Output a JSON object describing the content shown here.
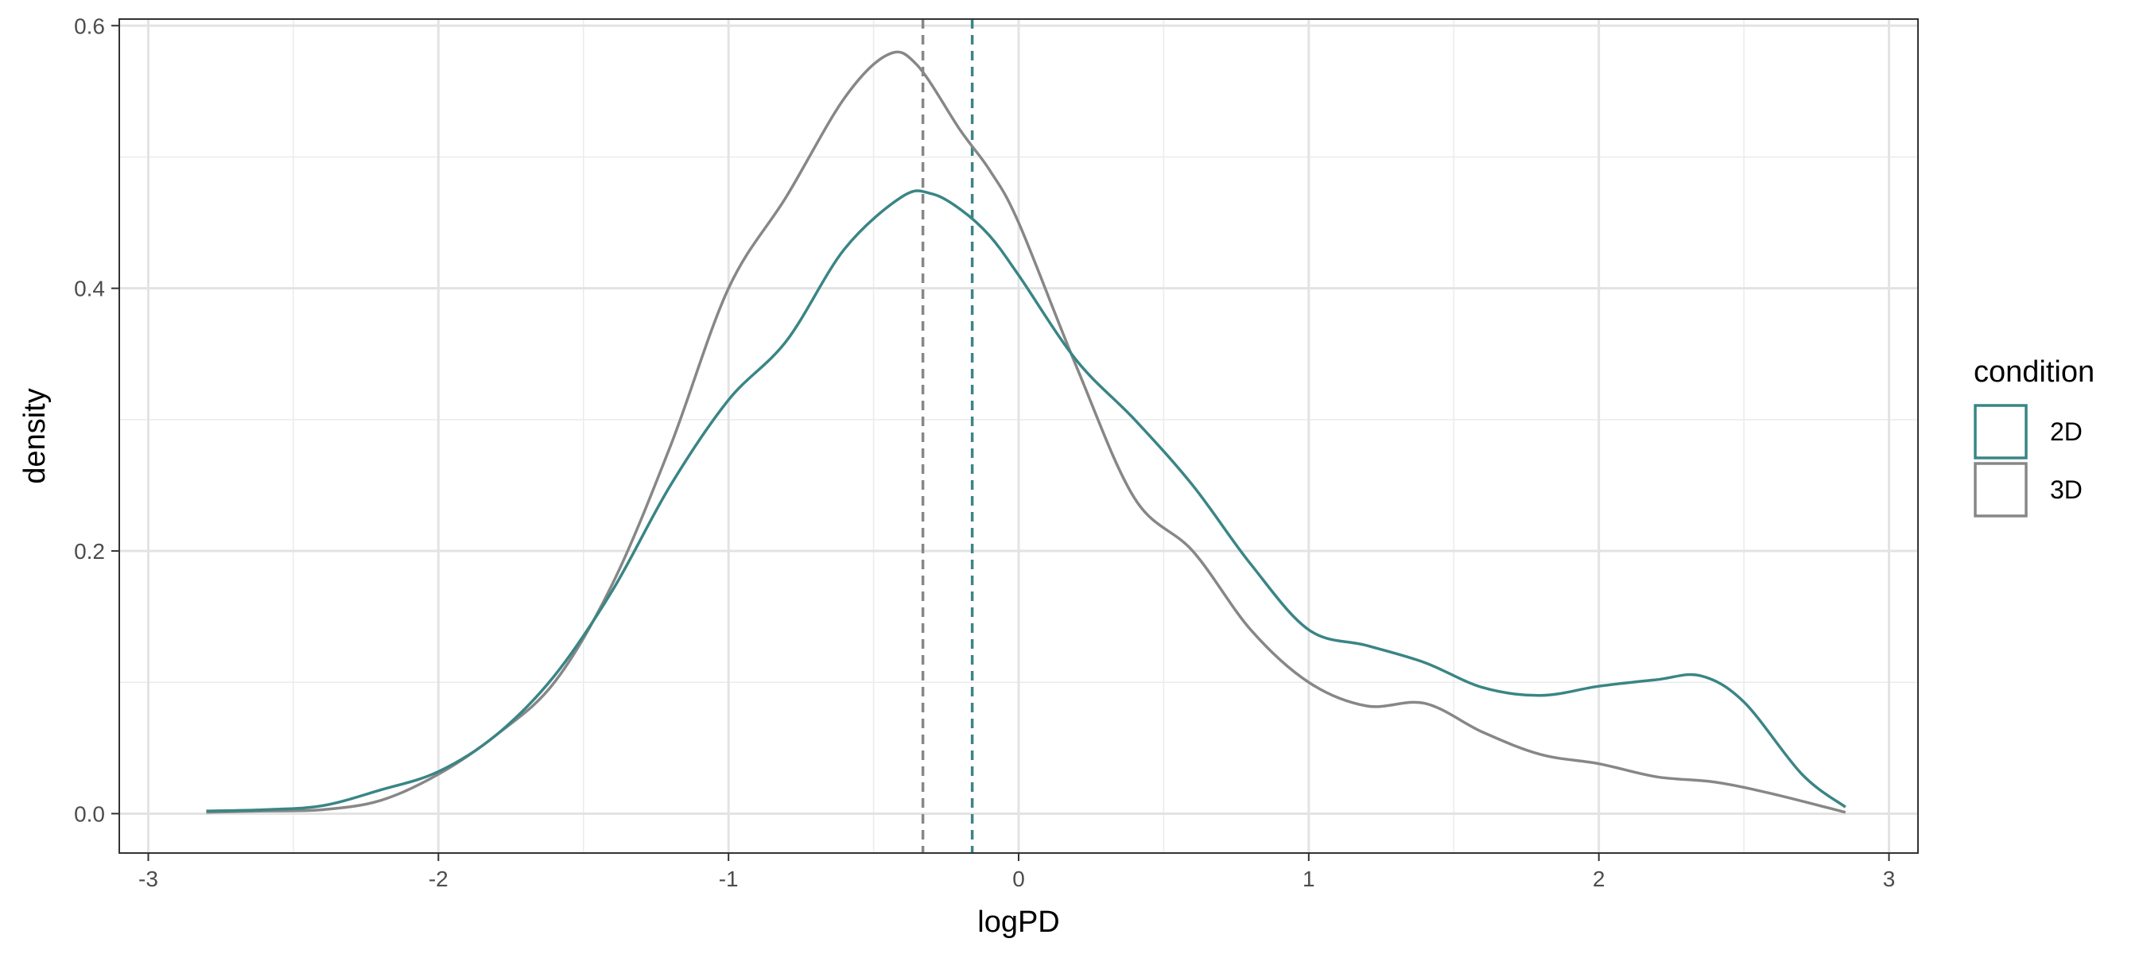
{
  "chart_data": {
    "type": "line",
    "subtype": "density",
    "xlabel": "logPD",
    "ylabel": "density",
    "xlim": [
      -3.1,
      3.1
    ],
    "ylim": [
      -0.03,
      0.605
    ],
    "xticks": [
      -3,
      -2,
      -1,
      0,
      1,
      2,
      3
    ],
    "xtick_labels": [
      "-3",
      "-2",
      "-1",
      "0",
      "1",
      "2",
      "3"
    ],
    "yticks": [
      0.0,
      0.2,
      0.4,
      0.6
    ],
    "ytick_labels": [
      "0.0",
      "0.2",
      "0.4",
      "0.6"
    ],
    "grid": true,
    "legend": {
      "title": "condition",
      "position": "right"
    },
    "series": [
      {
        "name": "2D",
        "color": "#3a8585",
        "mean_line": -0.16,
        "x": [
          -2.8,
          -2.6,
          -2.4,
          -2.2,
          -2.0,
          -1.8,
          -1.6,
          -1.4,
          -1.2,
          -1.0,
          -0.8,
          -0.6,
          -0.4,
          -0.3,
          -0.2,
          -0.1,
          0.0,
          0.2,
          0.4,
          0.6,
          0.8,
          1.0,
          1.2,
          1.4,
          1.6,
          1.8,
          2.0,
          2.2,
          2.35,
          2.5,
          2.7,
          2.85
        ],
        "y": [
          0.002,
          0.003,
          0.006,
          0.018,
          0.032,
          0.06,
          0.105,
          0.17,
          0.25,
          0.315,
          0.36,
          0.43,
          0.47,
          0.472,
          0.46,
          0.44,
          0.41,
          0.345,
          0.3,
          0.25,
          0.19,
          0.14,
          0.128,
          0.115,
          0.096,
          0.09,
          0.097,
          0.102,
          0.105,
          0.085,
          0.03,
          0.005
        ]
      },
      {
        "name": "3D",
        "color": "#878787",
        "mean_line": -0.33,
        "x": [
          -2.8,
          -2.6,
          -2.4,
          -2.2,
          -2.0,
          -1.8,
          -1.6,
          -1.4,
          -1.2,
          -1.0,
          -0.8,
          -0.6,
          -0.45,
          -0.35,
          -0.2,
          -0.1,
          0.0,
          0.2,
          0.4,
          0.6,
          0.8,
          1.0,
          1.2,
          1.4,
          1.6,
          1.8,
          2.0,
          2.2,
          2.4,
          2.6,
          2.85
        ],
        "y": [
          0.001,
          0.002,
          0.003,
          0.01,
          0.03,
          0.06,
          0.1,
          0.175,
          0.28,
          0.4,
          0.47,
          0.545,
          0.578,
          0.57,
          0.52,
          0.49,
          0.45,
          0.34,
          0.24,
          0.2,
          0.14,
          0.1,
          0.082,
          0.084,
          0.062,
          0.045,
          0.038,
          0.028,
          0.024,
          0.015,
          0.001
        ]
      }
    ]
  }
}
